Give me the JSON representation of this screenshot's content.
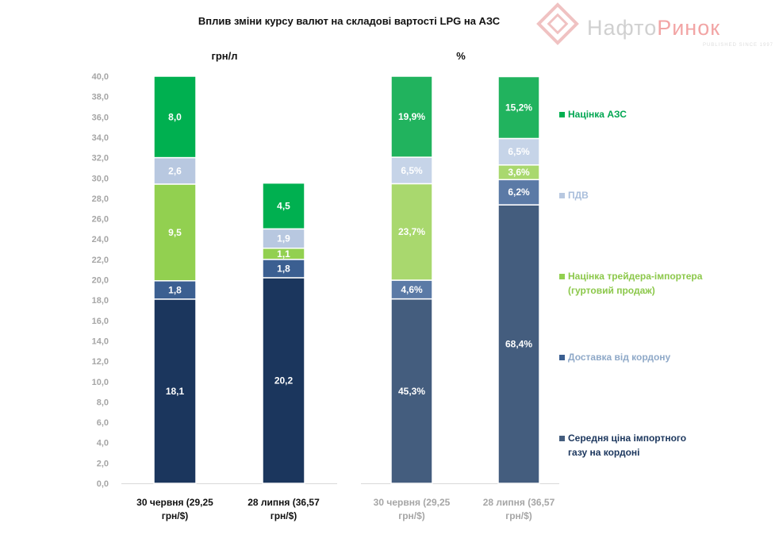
{
  "chart_data": [
    {
      "type": "bar",
      "stacked": true,
      "title": "Вплив зміни курсу валют на складові вартості LPG на АЗС",
      "subtitle": "грн/л",
      "categories": [
        [
          "30 червня (29,25",
          "грн/$)"
        ],
        [
          "28 липня (36,57",
          "грн/$)"
        ]
      ],
      "ylim": [
        0,
        40
      ],
      "yticks": [
        "0,0",
        "2,0",
        "4,0",
        "6,0",
        "8,0",
        "10,0",
        "12,0",
        "14,0",
        "16,0",
        "18,0",
        "20,0",
        "22,0",
        "24,0",
        "26,0",
        "28,0",
        "30,0",
        "32,0",
        "34,0",
        "36,0",
        "38,0",
        "40,0"
      ],
      "series": [
        {
          "name": "Середня ціна імпортного газу на кордоні",
          "values": [
            18.1,
            20.2
          ],
          "labels": [
            "18,1",
            "20,2"
          ],
          "color": "#1b365d"
        },
        {
          "name": "Доставка від кордону",
          "values": [
            1.8,
            1.8
          ],
          "labels": [
            "1,8",
            "1,8"
          ],
          "color": "#3b5f91"
        },
        {
          "name": "Націнка трейдера-імпортера (гуртовий продаж)",
          "values": [
            9.5,
            1.1
          ],
          "labels": [
            "9,5",
            "1,1"
          ],
          "color": "#92d050"
        },
        {
          "name": "ПДВ",
          "values": [
            2.6,
            1.9
          ],
          "labels": [
            "2,6",
            "1,9"
          ],
          "color": "#b8c8e0"
        },
        {
          "name": "Націнка АЗС",
          "values": [
            8.0,
            4.5
          ],
          "labels": [
            "8,0",
            "4,5"
          ],
          "color": "#00b050"
        }
      ]
    },
    {
      "type": "bar",
      "stacked": true,
      "subtitle": "%",
      "categories": [
        [
          "30 червня (29,25",
          "грн/$)"
        ],
        [
          "28 липня (36,57",
          "грн/$)"
        ]
      ],
      "ylim": [
        0,
        100
      ],
      "series": [
        {
          "name": "Середня ціна імпортного газу на кордоні",
          "values": [
            45.3,
            68.4
          ],
          "labels": [
            "45,3%",
            "68,4%"
          ],
          "color": "#445d7e"
        },
        {
          "name": "Доставка від кордону",
          "values": [
            4.6,
            6.2
          ],
          "labels": [
            "4,6%",
            "6,2%"
          ],
          "color": "#5b7aa6"
        },
        {
          "name": "Націнка трейдера-імпортера (гуртовий продаж)",
          "values": [
            23.7,
            3.6
          ],
          "labels": [
            "23,7%",
            "3,6%"
          ],
          "color": "#a9d86e"
        },
        {
          "name": "ПДВ",
          "values": [
            6.5,
            6.5
          ],
          "labels": [
            "6,5%",
            "6,5%"
          ],
          "color": "#c6d4e8"
        },
        {
          "name": "Націнка АЗС",
          "values": [
            19.9,
            15.2
          ],
          "labels": [
            "19,9%",
            "15,2%"
          ],
          "color": "#21b35e"
        }
      ]
    }
  ],
  "legend": [
    {
      "lines": [
        "Націнка АЗС"
      ],
      "marker": "#00b050",
      "text_color": "#00a651"
    },
    {
      "lines": [
        "ПДВ"
      ],
      "marker": "#b8c8e0",
      "text_color": "#a9bedb"
    },
    {
      "lines": [
        "Націнка трейдера-імпортера",
        "(гуртовий продаж)"
      ],
      "marker": "#92d050",
      "text_color": "#8cc84b"
    },
    {
      "lines": [
        "Доставка від кордону"
      ],
      "marker": "#3b5f91",
      "text_color": "#8fa9c8"
    },
    {
      "lines": [
        "Середня ціна імпортного",
        "газу на кордоні"
      ],
      "marker": "#445d7e",
      "text_color": "#1b365d"
    }
  ],
  "logo": {
    "name": "НафтоРинок",
    "tagline": "PUBLISHED SINCE 1997"
  }
}
